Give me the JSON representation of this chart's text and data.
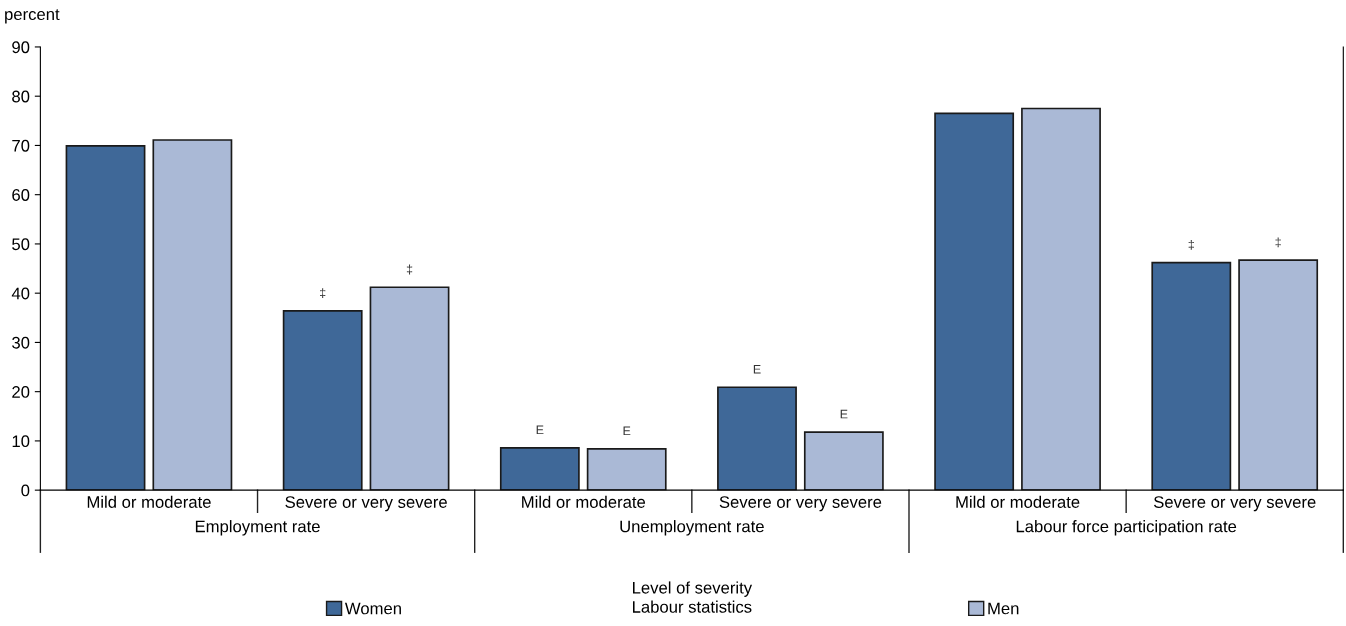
{
  "chart_data": {
    "type": "bar",
    "categories": [
      "Mild or moderate",
      "Severe or very severe",
      "Mild or moderate",
      "Severe or very severe",
      "Mild or moderate",
      "Severe or very severe"
    ],
    "series": [
      {
        "name": "Women",
        "color": "#3f6898",
        "values": [
          69.9,
          36.4,
          8.6,
          20.9,
          76.5,
          46.2
        ],
        "value_labels": [
          null,
          "‡",
          "E",
          "E",
          null,
          "‡"
        ]
      },
      {
        "name": "Men",
        "color": "#aab9d6",
        "values": [
          71.1,
          41.2,
          8.4,
          11.8,
          77.5,
          46.7
        ],
        "value_labels": [
          null,
          "‡",
          "E",
          "E",
          null,
          "‡"
        ]
      }
    ],
    "annotations": [
      "Employment rate",
      "Unemployment rate",
      "Labour force participation rate"
    ],
    "xlabel": "Level of severity\nLabour statistics",
    "ylabel": "percent",
    "ylim": [
      0,
      90
    ],
    "yticks": [
      0,
      10,
      20,
      30,
      40,
      50,
      60,
      70,
      80,
      90
    ],
    "grid": false,
    "legend": "bottom"
  }
}
